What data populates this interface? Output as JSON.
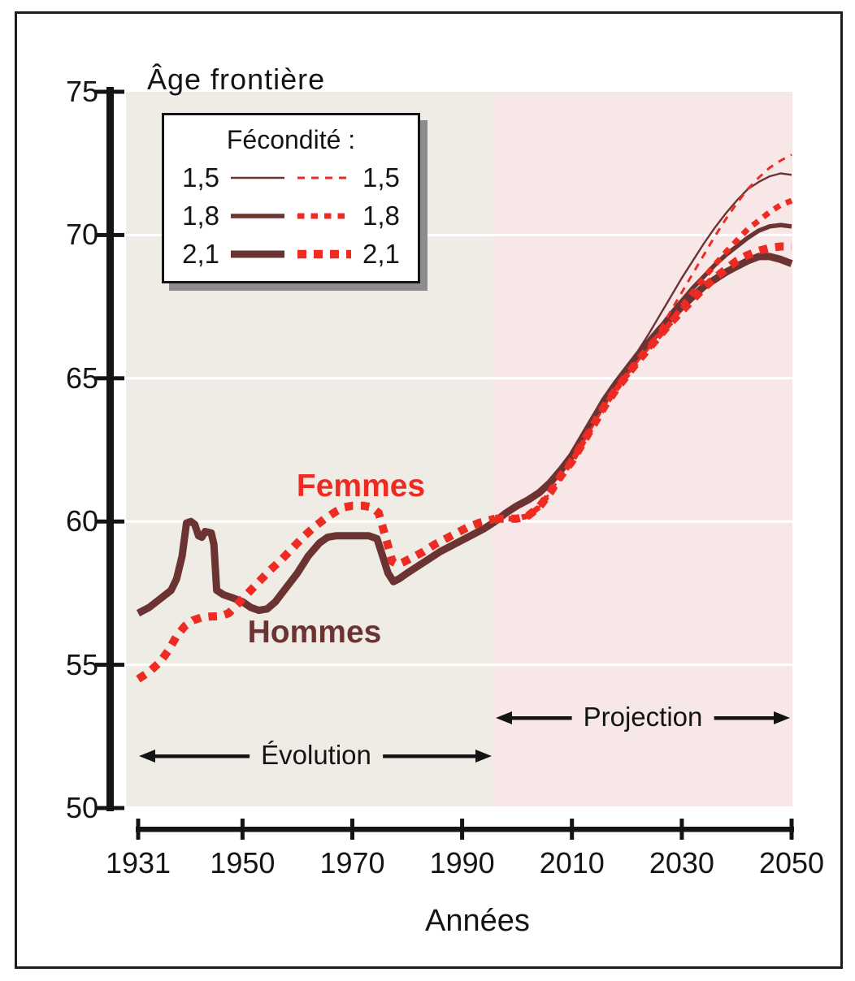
{
  "title": "Âge frontière",
  "legend": {
    "title": "Fécondité :",
    "rows": [
      {
        "left": "1,5",
        "right": "1,5",
        "weight": "thin"
      },
      {
        "left": "1,8",
        "right": "1,8",
        "weight": "medium"
      },
      {
        "left": "2,1",
        "right": "2,1",
        "weight": "thick"
      }
    ]
  },
  "colors": {
    "hommes_line": "#6b3432",
    "femmes_line": "#ee2b23",
    "evolution_background": "#efece6",
    "projection_background": "#f8e7e7",
    "gridline": "#ffffff",
    "axis": "#141414",
    "frame_border": "#1c1c1c",
    "legend_shadow": "#8d8d8d"
  },
  "chart_data": {
    "type": "line",
    "title": "Âge frontière",
    "xlabel": "Années",
    "ylabel": "Âge frontière",
    "xlim": [
      1931,
      2050
    ],
    "ylim": [
      50,
      75
    ],
    "x_ticks": [
      1931,
      1950,
      1970,
      1990,
      2010,
      2030,
      2050
    ],
    "y_ticks": [
      75,
      70,
      65,
      60,
      55,
      50
    ],
    "gridlines": {
      "horizontal_white_lines_at": [
        55,
        60,
        65,
        70
      ]
    },
    "legend_position": "top-left",
    "regions": [
      {
        "label": "Évolution",
        "from": 1931,
        "to": 1995.5
      },
      {
        "label": "Projection",
        "from": 1995.5,
        "to": 2050
      }
    ],
    "curve_annotations": [
      {
        "text": "Femmes",
        "x": 1971.5,
        "y": 61.2
      },
      {
        "text": "Hommes",
        "x": 1963,
        "y": 56.1
      }
    ],
    "series": [
      {
        "id": "hommes-observe",
        "name": "Hommes (observé)",
        "style": "solid",
        "weight": "thick",
        "color": "#6b3432",
        "points": [
          [
            1931,
            56.8
          ],
          [
            1933,
            57.0
          ],
          [
            1935,
            57.3
          ],
          [
            1937,
            57.6
          ],
          [
            1938,
            58.0
          ],
          [
            1939,
            58.8
          ],
          [
            1939.8,
            59.95
          ],
          [
            1940.6,
            60.0
          ],
          [
            1941.3,
            59.9
          ],
          [
            1942,
            59.5
          ],
          [
            1942.6,
            59.45
          ],
          [
            1943.2,
            59.65
          ],
          [
            1944.3,
            59.6
          ],
          [
            1944.8,
            59.2
          ],
          [
            1945.3,
            57.6
          ],
          [
            1946.5,
            57.45
          ],
          [
            1948,
            57.35
          ],
          [
            1950,
            57.2
          ],
          [
            1951.5,
            57.0
          ],
          [
            1953,
            56.9
          ],
          [
            1954.5,
            56.95
          ],
          [
            1956,
            57.2
          ],
          [
            1958,
            57.7
          ],
          [
            1960,
            58.2
          ],
          [
            1962,
            58.8
          ],
          [
            1964,
            59.25
          ],
          [
            1965.5,
            59.45
          ],
          [
            1967,
            59.5
          ],
          [
            1969,
            59.5
          ],
          [
            1971,
            59.5
          ],
          [
            1973,
            59.5
          ],
          [
            1974.5,
            59.4
          ],
          [
            1975.5,
            58.8
          ],
          [
            1976.5,
            58.2
          ],
          [
            1977.5,
            57.9
          ],
          [
            1978.5,
            58.0
          ],
          [
            1980,
            58.2
          ],
          [
            1982,
            58.45
          ],
          [
            1984,
            58.7
          ],
          [
            1986,
            58.95
          ],
          [
            1988,
            59.15
          ],
          [
            1990,
            59.35
          ],
          [
            1992,
            59.55
          ],
          [
            1994,
            59.75
          ],
          [
            1996,
            60.0
          ]
        ]
      },
      {
        "id": "femmes-observe",
        "name": "Femmes (observé)",
        "style": "dashed",
        "weight": "thick",
        "color": "#ee2b23",
        "points": [
          [
            1931,
            54.5
          ],
          [
            1933,
            54.75
          ],
          [
            1935,
            55.1
          ],
          [
            1936.5,
            55.5
          ],
          [
            1938,
            56.0
          ],
          [
            1939.5,
            56.35
          ],
          [
            1941,
            56.55
          ],
          [
            1942.5,
            56.65
          ],
          [
            1944,
            56.68
          ],
          [
            1946,
            56.7
          ],
          [
            1947.5,
            56.8
          ],
          [
            1949,
            57.1
          ],
          [
            1951,
            57.5
          ],
          [
            1953,
            57.9
          ],
          [
            1955,
            58.3
          ],
          [
            1957,
            58.65
          ],
          [
            1959,
            59.05
          ],
          [
            1961,
            59.45
          ],
          [
            1963,
            59.8
          ],
          [
            1965,
            60.1
          ],
          [
            1967,
            60.35
          ],
          [
            1968.5,
            60.5
          ],
          [
            1970,
            60.55
          ],
          [
            1972,
            60.55
          ],
          [
            1973.5,
            60.5
          ],
          [
            1974.8,
            60.3
          ],
          [
            1976,
            59.5
          ],
          [
            1977.3,
            58.6
          ],
          [
            1978.3,
            58.5
          ],
          [
            1979.5,
            58.6
          ],
          [
            1981,
            58.75
          ],
          [
            1983,
            58.95
          ],
          [
            1985,
            59.2
          ],
          [
            1987,
            59.4
          ],
          [
            1989,
            59.6
          ],
          [
            1991,
            59.8
          ],
          [
            1993,
            59.95
          ],
          [
            1995,
            60.05
          ],
          [
            1996,
            60.1
          ]
        ]
      },
      {
        "id": "hommes-fecondite-1-5",
        "name": "Hommes fécondité 1,5",
        "style": "solid",
        "weight": "thin",
        "color": "#6b3432",
        "points": [
          [
            1996,
            60.0
          ],
          [
            1998,
            60.3
          ],
          [
            2000,
            60.55
          ],
          [
            2002,
            60.75
          ],
          [
            2004,
            61.0
          ],
          [
            2006,
            61.35
          ],
          [
            2008,
            61.8
          ],
          [
            2010,
            62.3
          ],
          [
            2012,
            62.95
          ],
          [
            2014,
            63.6
          ],
          [
            2016,
            64.25
          ],
          [
            2018,
            64.8
          ],
          [
            2020,
            65.3
          ],
          [
            2022,
            65.95
          ],
          [
            2024,
            66.55
          ],
          [
            2026,
            67.2
          ],
          [
            2028,
            67.85
          ],
          [
            2030,
            68.5
          ],
          [
            2032,
            69.1
          ],
          [
            2034,
            69.7
          ],
          [
            2036,
            70.25
          ],
          [
            2038,
            70.75
          ],
          [
            2040,
            71.2
          ],
          [
            2042,
            71.6
          ],
          [
            2044,
            71.85
          ],
          [
            2046,
            72.05
          ],
          [
            2048,
            72.15
          ],
          [
            2050,
            72.1
          ]
        ]
      },
      {
        "id": "hommes-fecondite-1-8",
        "name": "Hommes fécondité 1,8",
        "style": "solid",
        "weight": "medium",
        "color": "#6b3432",
        "points": [
          [
            1996,
            60.0
          ],
          [
            1998,
            60.3
          ],
          [
            2000,
            60.55
          ],
          [
            2002,
            60.75
          ],
          [
            2004,
            61.0
          ],
          [
            2006,
            61.35
          ],
          [
            2008,
            61.8
          ],
          [
            2010,
            62.3
          ],
          [
            2012,
            62.95
          ],
          [
            2014,
            63.6
          ],
          [
            2016,
            64.25
          ],
          [
            2018,
            64.8
          ],
          [
            2020,
            65.3
          ],
          [
            2022,
            65.8
          ],
          [
            2024,
            66.3
          ],
          [
            2026,
            66.75
          ],
          [
            2028,
            67.25
          ],
          [
            2030,
            67.7
          ],
          [
            2032,
            68.15
          ],
          [
            2034,
            68.55
          ],
          [
            2036,
            68.95
          ],
          [
            2038,
            69.3
          ],
          [
            2040,
            69.6
          ],
          [
            2042,
            69.9
          ],
          [
            2044,
            70.15
          ],
          [
            2046,
            70.3
          ],
          [
            2048,
            70.35
          ],
          [
            2050,
            70.3
          ]
        ]
      },
      {
        "id": "hommes-fecondite-2-1",
        "name": "Hommes fécondité 2,1",
        "style": "solid",
        "weight": "thick",
        "color": "#6b3432",
        "points": [
          [
            1996,
            60.0
          ],
          [
            1998,
            60.3
          ],
          [
            2000,
            60.55
          ],
          [
            2002,
            60.75
          ],
          [
            2004,
            61.0
          ],
          [
            2006,
            61.35
          ],
          [
            2008,
            61.8
          ],
          [
            2010,
            62.3
          ],
          [
            2012,
            62.95
          ],
          [
            2014,
            63.6
          ],
          [
            2016,
            64.25
          ],
          [
            2018,
            64.8
          ],
          [
            2020,
            65.3
          ],
          [
            2022,
            65.8
          ],
          [
            2024,
            66.25
          ],
          [
            2026,
            66.7
          ],
          [
            2028,
            67.1
          ],
          [
            2030,
            67.5
          ],
          [
            2032,
            67.85
          ],
          [
            2034,
            68.2
          ],
          [
            2036,
            68.45
          ],
          [
            2038,
            68.7
          ],
          [
            2040,
            68.9
          ],
          [
            2042,
            69.1
          ],
          [
            2044,
            69.25
          ],
          [
            2046,
            69.25
          ],
          [
            2048,
            69.15
          ],
          [
            2050,
            69.0
          ]
        ]
      },
      {
        "id": "femmes-fecondite-1-5",
        "name": "Femmes fécondité 1,5",
        "style": "dashed",
        "weight": "thin",
        "color": "#ee2b23",
        "points": [
          [
            1996,
            60.1
          ],
          [
            1998,
            60.1
          ],
          [
            2000,
            60.1
          ],
          [
            2002,
            60.2
          ],
          [
            2004,
            60.5
          ],
          [
            2006,
            61.0
          ],
          [
            2008,
            61.6
          ],
          [
            2010,
            62.1
          ],
          [
            2012,
            62.75
          ],
          [
            2014,
            63.4
          ],
          [
            2016,
            64.05
          ],
          [
            2018,
            64.6
          ],
          [
            2020,
            65.1
          ],
          [
            2022,
            65.6
          ],
          [
            2024,
            66.05
          ],
          [
            2026,
            66.7
          ],
          [
            2028,
            67.35
          ],
          [
            2030,
            68.0
          ],
          [
            2032,
            68.65
          ],
          [
            2034,
            69.3
          ],
          [
            2036,
            69.95
          ],
          [
            2038,
            70.55
          ],
          [
            2040,
            71.1
          ],
          [
            2042,
            71.6
          ],
          [
            2044,
            72.0
          ],
          [
            2046,
            72.35
          ],
          [
            2048,
            72.6
          ],
          [
            2050,
            72.8
          ]
        ]
      },
      {
        "id": "femmes-fecondite-1-8",
        "name": "Femmes fécondité 1,8",
        "style": "dashed",
        "weight": "medium",
        "color": "#ee2b23",
        "points": [
          [
            1996,
            60.1
          ],
          [
            1998,
            60.1
          ],
          [
            2000,
            60.1
          ],
          [
            2002,
            60.2
          ],
          [
            2004,
            60.5
          ],
          [
            2006,
            61.0
          ],
          [
            2008,
            61.6
          ],
          [
            2010,
            62.1
          ],
          [
            2012,
            62.75
          ],
          [
            2014,
            63.4
          ],
          [
            2016,
            64.05
          ],
          [
            2018,
            64.6
          ],
          [
            2020,
            65.1
          ],
          [
            2022,
            65.6
          ],
          [
            2024,
            66.05
          ],
          [
            2026,
            66.5
          ],
          [
            2028,
            66.95
          ],
          [
            2030,
            67.5
          ],
          [
            2032,
            68.0
          ],
          [
            2034,
            68.5
          ],
          [
            2036,
            68.95
          ],
          [
            2038,
            69.4
          ],
          [
            2040,
            69.8
          ],
          [
            2042,
            70.2
          ],
          [
            2044,
            70.5
          ],
          [
            2046,
            70.8
          ],
          [
            2048,
            71.05
          ],
          [
            2050,
            71.2
          ]
        ]
      },
      {
        "id": "femmes-fecondite-2-1",
        "name": "Femmes fécondité 2,1",
        "style": "dashed",
        "weight": "thick",
        "color": "#ee2b23",
        "points": [
          [
            1996,
            60.1
          ],
          [
            1998,
            60.1
          ],
          [
            2000,
            60.1
          ],
          [
            2002,
            60.2
          ],
          [
            2004,
            60.5
          ],
          [
            2006,
            61.0
          ],
          [
            2008,
            61.6
          ],
          [
            2010,
            62.1
          ],
          [
            2012,
            62.75
          ],
          [
            2014,
            63.4
          ],
          [
            2016,
            64.05
          ],
          [
            2018,
            64.6
          ],
          [
            2020,
            65.1
          ],
          [
            2022,
            65.6
          ],
          [
            2024,
            66.05
          ],
          [
            2026,
            66.5
          ],
          [
            2028,
            66.95
          ],
          [
            2030,
            67.35
          ],
          [
            2032,
            67.75
          ],
          [
            2034,
            68.15
          ],
          [
            2036,
            68.5
          ],
          [
            2038,
            68.8
          ],
          [
            2040,
            69.1
          ],
          [
            2042,
            69.3
          ],
          [
            2044,
            69.45
          ],
          [
            2046,
            69.55
          ],
          [
            2048,
            69.6
          ],
          [
            2050,
            69.6
          ]
        ]
      }
    ]
  }
}
